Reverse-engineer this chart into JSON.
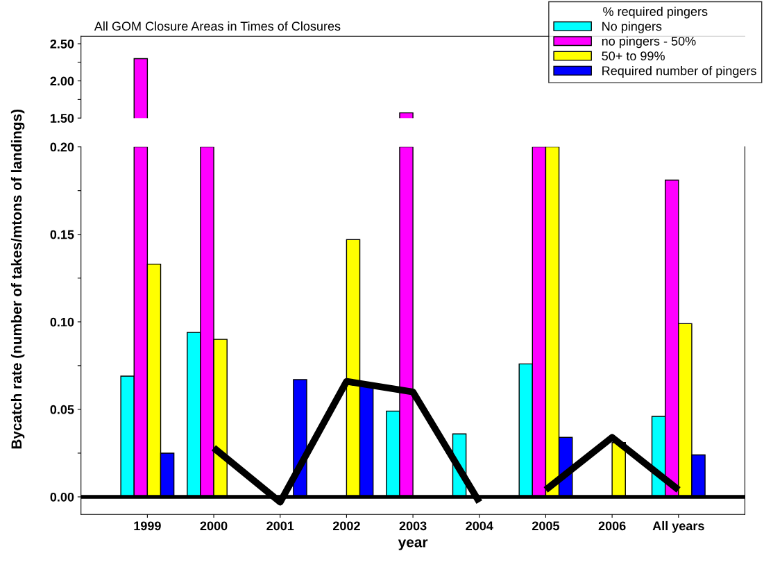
{
  "chart_data": [
    {
      "type": "bar",
      "title": "All GOM Closure Areas in Times of Closures",
      "legend_title": "% required pingers",
      "legend": "top right",
      "grid": false,
      "tick_labels": "y",
      "categories": [
        null,
        null,
        null,
        null,
        null,
        null,
        null,
        null,
        null
      ],
      "ylim": [
        1.5,
        2.6
      ],
      "yticks": [
        {
          "value": 1.5,
          "label": "1.50"
        },
        {
          "value": 1.75,
          "label": null
        },
        {
          "value": 2.0,
          "label": "2.00"
        },
        {
          "value": 2.25,
          "label": null
        },
        {
          "value": 2.5,
          "label": "2.50"
        }
      ],
      "series": [
        {
          "name": "No pingers",
          "color": "#00ffff",
          "values": [
            null,
            null,
            null,
            null,
            null,
            null,
            null,
            null,
            null
          ]
        },
        {
          "name": "no pingers - 50%",
          "color": "#ff00ff",
          "values": [
            2.3,
            null,
            null,
            null,
            1.57,
            null,
            null,
            null,
            null
          ]
        },
        {
          "name": "50+ to 99%",
          "color": "#ffff00",
          "values": [
            null,
            null,
            null,
            null,
            null,
            null,
            null,
            null,
            null
          ]
        },
        {
          "name": "Required number of pingers",
          "color": "#0000ff",
          "values": [
            null,
            null,
            null,
            null,
            null,
            null,
            null,
            null,
            null
          ]
        }
      ]
    },
    {
      "type": "bar",
      "xlabel": "year",
      "ylabel": "Bycatch rate (number of takes/mtons of landings)",
      "grid": false,
      "categories": [
        "1999",
        "2000",
        "2001",
        "2002",
        "2003",
        "2004",
        "2005",
        "2006",
        "All years"
      ],
      "ylim": [
        -0.01,
        0.2
      ],
      "yticks": [
        {
          "value": 0.0,
          "label": "0.00"
        },
        {
          "value": 0.025,
          "label": null
        },
        {
          "value": 0.05,
          "label": "0.05"
        },
        {
          "value": 0.075,
          "label": null
        },
        {
          "value": 0.1,
          "label": "0.10"
        },
        {
          "value": 0.125,
          "label": null
        },
        {
          "value": 0.15,
          "label": "0.15"
        },
        {
          "value": 0.175,
          "label": null
        },
        {
          "value": 0.2,
          "label": "0.20"
        }
      ],
      "ref_lines": [
        {
          "axis": "y",
          "value": 0,
          "color": "#000000"
        }
      ],
      "series": [
        {
          "color": "#00ffff",
          "values": [
            0.069,
            0.094,
            0,
            0,
            0.049,
            0.036,
            0.076,
            0,
            0.046
          ]
        },
        {
          "color": "#ff00ff",
          "values": [
            0.2,
            0.2,
            0,
            0,
            0.2,
            0,
            0.2,
            0,
            0.181
          ]
        },
        {
          "color": "#ffff00",
          "values": [
            0.133,
            0.09,
            0,
            0.147,
            0,
            0,
            0.2,
            0.031,
            0.099
          ]
        },
        {
          "color": "#0000ff",
          "values": [
            0.025,
            0,
            0.067,
            0.064,
            0,
            0,
            0.034,
            0,
            0.024
          ]
        },
        {
          "type": "line",
          "color": "#000000",
          "values": [
            null,
            0.028,
            -0.003,
            0.066,
            0.06,
            -0.003,
            null,
            null,
            null
          ]
        },
        {
          "type": "line",
          "color": "#000000",
          "values": [
            null,
            null,
            null,
            null,
            null,
            null,
            0.004,
            0.034,
            0.004
          ]
        }
      ]
    }
  ]
}
